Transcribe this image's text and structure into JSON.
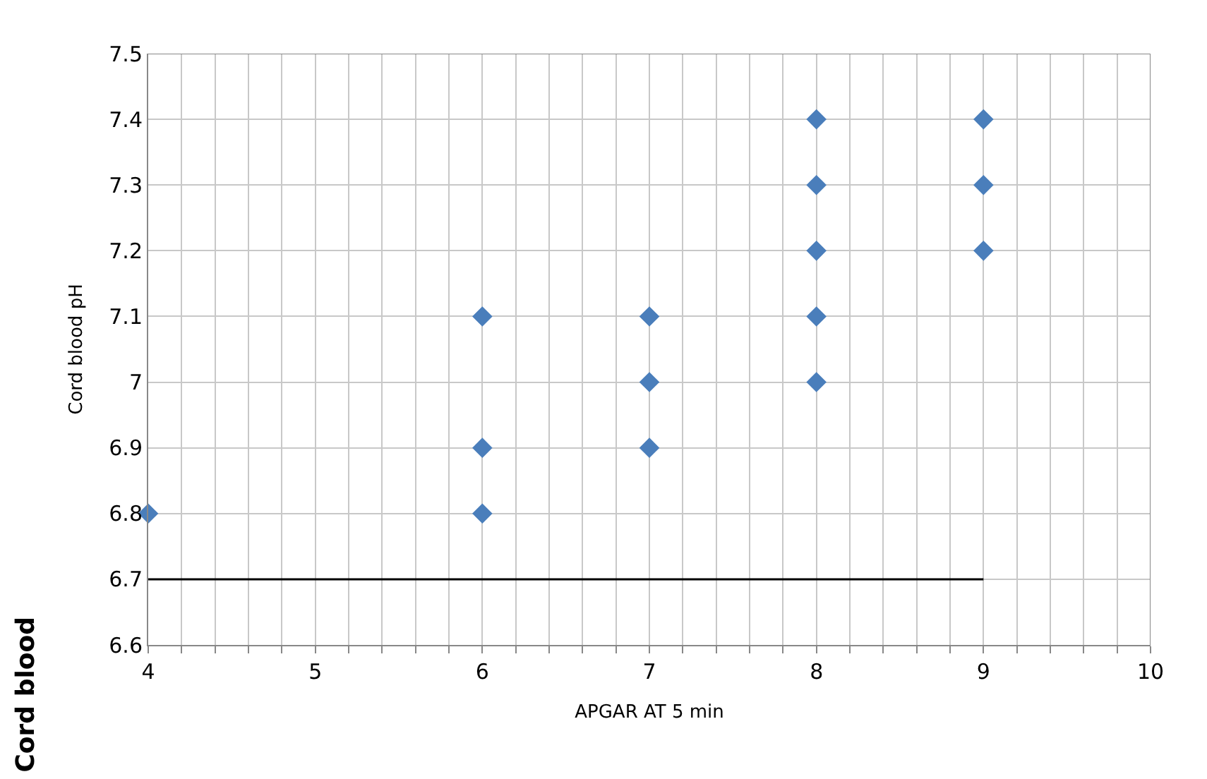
{
  "chart_data": {
    "type": "scatter",
    "xlabel": "APGAR AT 5 min",
    "ylabel": "Cord blood pH",
    "annotations": [
      "Cord blood"
    ],
    "series": [
      {
        "x": [
          4,
          6,
          6,
          6,
          7,
          7,
          7,
          8,
          8,
          8,
          8,
          8,
          9,
          9,
          9
        ],
        "values": [
          6.8,
          7.1,
          6.9,
          6.8,
          7.1,
          7.0,
          6.9,
          7.4,
          7.3,
          7.2,
          7.1,
          7.0,
          7.4,
          7.3,
          7.2
        ],
        "color": "#4a7ebb",
        "marker": "diamond"
      },
      {
        "type": "line",
        "x": [
          4,
          9
        ],
        "values": [
          6.7,
          6.7
        ],
        "color": "#000000",
        "marker": "none",
        "line_style": "solid"
      }
    ],
    "xlim": [
      4,
      10
    ],
    "xticks": [
      4,
      {
        "value": 4.2,
        "label": null
      },
      {
        "value": 4.4,
        "label": null
      },
      {
        "value": 4.6,
        "label": null
      },
      {
        "value": 4.8,
        "label": null
      },
      5,
      {
        "value": 5.2,
        "label": null
      },
      {
        "value": 5.4,
        "label": null
      },
      {
        "value": 5.6,
        "label": null
      },
      {
        "value": 5.8,
        "label": null
      },
      6,
      {
        "value": 6.2,
        "label": null
      },
      {
        "value": 6.4,
        "label": null
      },
      {
        "value": 6.6,
        "label": null
      },
      {
        "value": 6.8,
        "label": null
      },
      7,
      {
        "value": 7.2,
        "label": null
      },
      {
        "value": 7.4,
        "label": null
      },
      {
        "value": 7.6,
        "label": null
      },
      {
        "value": 7.8,
        "label": null
      },
      8,
      {
        "value": 8.2,
        "label": null
      },
      {
        "value": 8.4,
        "label": null
      },
      {
        "value": 8.6,
        "label": null
      },
      {
        "value": 8.8,
        "label": null
      },
      9,
      {
        "value": 9.2,
        "label": null
      },
      {
        "value": 9.4,
        "label": null
      },
      {
        "value": 9.6,
        "label": null
      },
      {
        "value": 9.8,
        "label": null
      },
      10
    ],
    "ylim": [
      6.6,
      7.5
    ],
    "yticks": [
      6.6,
      6.7,
      6.8,
      6.9,
      7,
      7.1,
      7.2,
      7.3,
      7.4,
      7.5
    ],
    "grid": true
  }
}
